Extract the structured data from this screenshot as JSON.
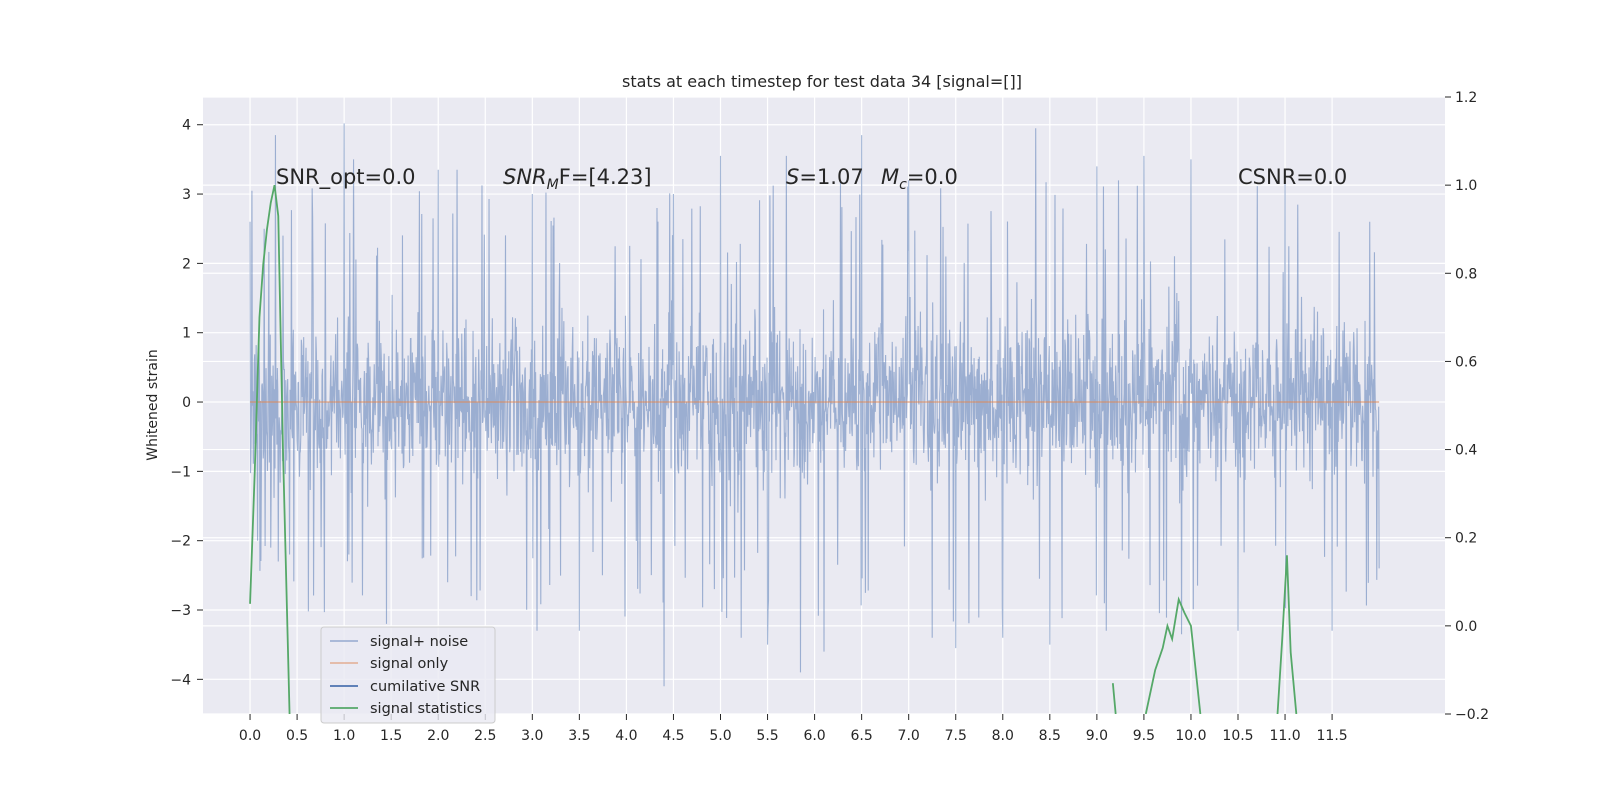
{
  "chart_data": {
    "type": "line",
    "title": "stats at each timestep for test data 34 [signal=[]]",
    "ylabel": "Whitened strain",
    "xlim": [
      -0.5,
      12.7
    ],
    "ylim": [
      -4.5,
      4.4
    ],
    "y2lim": [
      -0.2,
      1.2
    ],
    "x_ticks": [
      0.0,
      0.5,
      1.0,
      1.5,
      2.0,
      2.5,
      3.0,
      3.5,
      4.0,
      4.5,
      5.0,
      5.5,
      6.0,
      6.5,
      7.0,
      7.5,
      8.0,
      8.5,
      9.0,
      9.5,
      10.0,
      10.5,
      11.0,
      11.5
    ],
    "x_tick_labels": [
      "0.0",
      "0.5",
      "1.0",
      "1.5",
      "2.0",
      "2.5",
      "3.0",
      "3.5",
      "4.0",
      "4.5",
      "5.0",
      "5.5",
      "6.0",
      "6.5",
      "7.0",
      "7.5",
      "8.0",
      "8.5",
      "9.0",
      "9.5",
      "10.0",
      "10.5",
      "11.0",
      "11.5"
    ],
    "y_ticks": [
      4,
      3,
      2,
      1,
      0,
      -1,
      -2,
      -3,
      -4
    ],
    "y_tick_labels": [
      "4",
      "3",
      "2",
      "1",
      "0",
      "−1",
      "−2",
      "−3",
      "−4"
    ],
    "y2_ticks": [
      1.2,
      1.0,
      0.8,
      0.6,
      0.4,
      0.2,
      0.0,
      -0.2
    ],
    "y2_tick_labels": [
      "1.2",
      "1.0",
      "0.8",
      "0.6",
      "0.4",
      "0.2",
      "0.0",
      "−0.2"
    ],
    "grid": true,
    "legend_position": "lower-left",
    "annotations": {
      "snr_opt": "SNR_opt=0.0",
      "snr_mf_main": "SNR",
      "snr_mf_sub": "M",
      "snr_mf_rest": "F=[4.23]",
      "s_sym": "S",
      "s_rest": "=1.07",
      "mc_sym": "M",
      "mc_sub": "c",
      "mc_rest": "=0.0",
      "csnr": "CSNR=0.0"
    },
    "series": [
      {
        "name": "signal+ noise",
        "color": "#4c72b0",
        "alpha": 0.5,
        "x_range": [
          0.0,
          12.0
        ],
        "y_min": -4.1,
        "y_max": 4.02,
        "points": [
          [
            0.0,
            2.6
          ],
          [
            0.08,
            -2.0
          ],
          [
            0.15,
            2.5
          ],
          [
            0.22,
            -2.1
          ],
          [
            0.27,
            3.85
          ],
          [
            0.3,
            -2.3
          ],
          [
            0.35,
            2.4
          ],
          [
            0.42,
            -2.2
          ],
          [
            1.0,
            4.02
          ],
          [
            1.05,
            -2.2
          ],
          [
            1.1,
            3.5
          ],
          [
            1.45,
            -3.2
          ],
          [
            2.0,
            3.35
          ],
          [
            2.1,
            -2.6
          ],
          [
            2.2,
            3.35
          ],
          [
            2.35,
            -2.8
          ],
          [
            3.0,
            3.0
          ],
          [
            3.05,
            -3.3
          ],
          [
            3.5,
            -3.3
          ],
          [
            4.4,
            -4.1
          ],
          [
            4.5,
            3.0
          ],
          [
            5.0,
            3.55
          ],
          [
            5.22,
            -3.4
          ],
          [
            5.5,
            -3.5
          ],
          [
            5.7,
            3.55
          ],
          [
            5.85,
            -3.9
          ],
          [
            6.1,
            -3.6
          ],
          [
            6.5,
            3.85
          ],
          [
            7.0,
            3.2
          ],
          [
            7.25,
            -3.4
          ],
          [
            7.5,
            3.85
          ],
          [
            7.5,
            -3.55
          ],
          [
            8.0,
            3.2
          ],
          [
            8.0,
            -3.4
          ],
          [
            8.35,
            3.95
          ],
          [
            8.5,
            -3.5
          ],
          [
            9.0,
            3.4
          ],
          [
            9.1,
            -3.3
          ],
          [
            9.5,
            3.55
          ],
          [
            9.9,
            -3.35
          ],
          [
            10.0,
            3.5
          ],
          [
            10.5,
            -3.3
          ],
          [
            11.0,
            3.15
          ],
          [
            11.5,
            -3.3
          ],
          [
            11.9,
            2.6
          ],
          [
            12.0,
            -2.4
          ]
        ]
      },
      {
        "name": "signal only",
        "color": "#dd8452",
        "values_constant": 0.0
      },
      {
        "name": "cumilative SNR",
        "color": "#4c72b0",
        "x": [],
        "y": []
      },
      {
        "name": "signal statistics",
        "color": "#55a868",
        "axis": "right",
        "segments": [
          [
            [
              0.0,
              0.05
            ],
            [
              0.05,
              0.35
            ],
            [
              0.1,
              0.7
            ],
            [
              0.14,
              0.82
            ],
            [
              0.18,
              0.9
            ],
            [
              0.22,
              0.96
            ],
            [
              0.26,
              1.0
            ],
            [
              0.3,
              0.93
            ],
            [
              0.35,
              0.4
            ],
            [
              0.42,
              -0.2
            ]
          ],
          [
            [
              9.17,
              -0.13
            ],
            [
              9.2,
              -0.2
            ]
          ],
          [
            [
              9.52,
              -0.2
            ],
            [
              9.62,
              -0.1
            ],
            [
              9.7,
              -0.05
            ],
            [
              9.75,
              0.0
            ],
            [
              9.8,
              -0.03
            ],
            [
              9.87,
              0.06
            ],
            [
              9.93,
              0.03
            ],
            [
              10.0,
              0.0
            ],
            [
              10.05,
              -0.1
            ],
            [
              10.1,
              -0.2
            ]
          ],
          [
            [
              10.92,
              -0.2
            ],
            [
              10.97,
              -0.03
            ],
            [
              11.02,
              0.16
            ],
            [
              11.06,
              -0.06
            ],
            [
              11.12,
              -0.2
            ]
          ]
        ]
      }
    ]
  }
}
